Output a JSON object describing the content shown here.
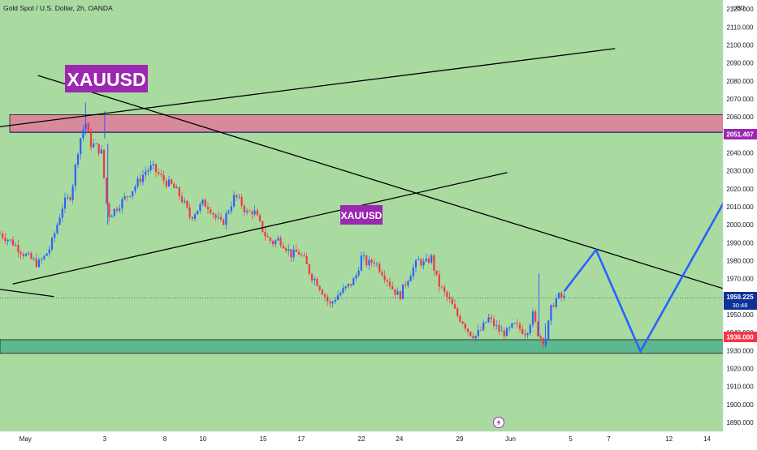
{
  "header": {
    "title": "Gold Spot / U.S. Dollar, 2h, OANDA",
    "currency": "USD"
  },
  "colors": {
    "bull": "#2962ff",
    "bear": "#f23645",
    "bg_green": "#a9dba0",
    "resistance_zone": "#d98a9a",
    "support_zone": "#5cb88e",
    "label_purple": "#9c27b0",
    "projection": "#2962ff",
    "price_tag": "#0c3299",
    "support_tag": "#f23645"
  },
  "annotations": {
    "big_label": "XAUUSD",
    "small_label": "XAUUSD"
  },
  "price_tags": {
    "resistance": "2051.407",
    "current": "1959.225",
    "countdown": "30:48",
    "support": "1936.000"
  },
  "icons": {
    "flash": "lightning-icon"
  },
  "chart_data": {
    "type": "candlestick",
    "title": "Gold Spot / U.S. Dollar, 2h, OANDA",
    "ylim": [
      1885,
      2125
    ],
    "yticks": [
      1890,
      1900,
      1910,
      1920,
      1930,
      1940,
      1950,
      1960,
      1970,
      1980,
      1990,
      2000,
      2010,
      2020,
      2030,
      2040,
      2050,
      2060,
      2070,
      2080,
      2090,
      2100,
      2110,
      2120
    ],
    "xticks": [
      {
        "label": "May",
        "pos": 0
      },
      {
        "label": "3",
        "pos": 12.5
      },
      {
        "label": "8",
        "pos": 22
      },
      {
        "label": "10",
        "pos": 28
      },
      {
        "label": "15",
        "pos": 37.5
      },
      {
        "label": "17",
        "pos": 43.5
      },
      {
        "label": "22",
        "pos": 53
      },
      {
        "label": "24",
        "pos": 59
      },
      {
        "label": "29",
        "pos": 68.5
      },
      {
        "label": "Jun",
        "pos": 76.5
      },
      {
        "label": "5",
        "pos": 86
      },
      {
        "label": "7",
        "pos": 92
      },
      {
        "label": "12",
        "pos": 101.5
      },
      {
        "label": "14",
        "pos": 107.5
      }
    ],
    "x_range": [
      -4,
      110
    ],
    "path_closes": [
      [
        -4,
        1995
      ],
      [
        -2,
        1990
      ],
      [
        0,
        1983
      ],
      [
        2,
        1978
      ],
      [
        3,
        1982
      ],
      [
        4,
        1988
      ],
      [
        5,
        2000
      ],
      [
        6,
        2012
      ],
      [
        7,
        2015
      ],
      [
        7.6,
        2025
      ],
      [
        8.2,
        2040
      ],
      [
        8.8,
        2050
      ],
      [
        9.5,
        2057
      ],
      [
        10.2,
        2045
      ],
      [
        11,
        2044
      ],
      [
        12,
        2040
      ],
      [
        13,
        2005
      ],
      [
        14,
        2008
      ],
      [
        15,
        2012
      ],
      [
        16,
        2016
      ],
      [
        17,
        2020
      ],
      [
        18,
        2025
      ],
      [
        19,
        2030
      ],
      [
        20,
        2032
      ],
      [
        21,
        2028
      ],
      [
        22,
        2024
      ],
      [
        23,
        2022
      ],
      [
        24,
        2018
      ],
      [
        25,
        2012
      ],
      [
        26,
        2004
      ],
      [
        27,
        2008
      ],
      [
        28,
        2012
      ],
      [
        29,
        2010
      ],
      [
        30,
        2004
      ],
      [
        31,
        2000
      ],
      [
        32,
        2008
      ],
      [
        33,
        2016
      ],
      [
        34,
        2012
      ],
      [
        35,
        2006
      ],
      [
        36,
        2008
      ],
      [
        37,
        2000
      ],
      [
        38,
        1993
      ],
      [
        39,
        1990
      ],
      [
        40,
        1992
      ],
      [
        41,
        1988
      ],
      [
        42,
        1983
      ],
      [
        43,
        1985
      ],
      [
        44,
        1980
      ],
      [
        45,
        1972
      ],
      [
        46,
        1968
      ],
      [
        47,
        1962
      ],
      [
        48,
        1955
      ],
      [
        49,
        1960
      ],
      [
        50,
        1963
      ],
      [
        51,
        1966
      ],
      [
        52,
        1970
      ],
      [
        53,
        1982
      ],
      [
        54,
        1978
      ],
      [
        55,
        1980
      ],
      [
        56,
        1975
      ],
      [
        57,
        1970
      ],
      [
        58,
        1964
      ],
      [
        59,
        1960
      ],
      [
        60,
        1968
      ],
      [
        61,
        1975
      ],
      [
        62,
        1980
      ],
      [
        63,
        1978
      ],
      [
        64,
        1982
      ],
      [
        65,
        1968
      ],
      [
        66,
        1962
      ],
      [
        67,
        1957
      ],
      [
        68,
        1950
      ],
      [
        69,
        1946
      ],
      [
        70,
        1940
      ],
      [
        71,
        1938
      ],
      [
        72,
        1942
      ],
      [
        73,
        1948
      ],
      [
        74,
        1944
      ],
      [
        75,
        1940
      ],
      [
        76,
        1940
      ],
      [
        77,
        1944
      ],
      [
        78,
        1942
      ],
      [
        79,
        1940
      ],
      [
        80,
        1950
      ],
      [
        81,
        1938
      ],
      [
        82,
        1935
      ],
      [
        83,
        1955
      ],
      [
        84,
        1960
      ],
      [
        85,
        1959.2
      ]
    ],
    "spikes": [
      {
        "x": 9.5,
        "high": 2068,
        "low": 2050
      },
      {
        "x": 12.5,
        "high": 2063,
        "low": 2048
      },
      {
        "x": 13,
        "high": 2045,
        "low": 2000
      },
      {
        "x": 81,
        "high": 1973,
        "low": 1938
      },
      {
        "x": 82,
        "high": 1945,
        "low": 1932
      }
    ],
    "zones": [
      {
        "name": "resistance",
        "from": 2051.4,
        "to": 2061.2
      },
      {
        "name": "support",
        "from": 1928.4,
        "to": 1936.0
      }
    ],
    "trendlines": [
      {
        "name": "upper-channel",
        "x1": -4,
        "y1": 2054.5,
        "x2": 93,
        "y2": 2098
      },
      {
        "name": "descending",
        "x1": 2,
        "y1": 2083,
        "x2": 110,
        "y2": 1964.5
      },
      {
        "name": "rising",
        "x1": -2,
        "y1": 1967,
        "x2": 76,
        "y2": 2029
      },
      {
        "name": "lower-left",
        "x1": -4,
        "y1": 1964,
        "x2": 4.5,
        "y2": 1960
      }
    ],
    "projection": [
      [
        85,
        1963
      ],
      [
        90,
        1986
      ],
      [
        97,
        1929.5
      ],
      [
        115,
        2043
      ]
    ],
    "projection_arrowhead": [
      115,
      2043
    ],
    "current_price": 1959.225,
    "current_price_label": "1959.225",
    "countdown": "30:48",
    "resistance_label": "2051.407",
    "support_label": "1936.000"
  }
}
